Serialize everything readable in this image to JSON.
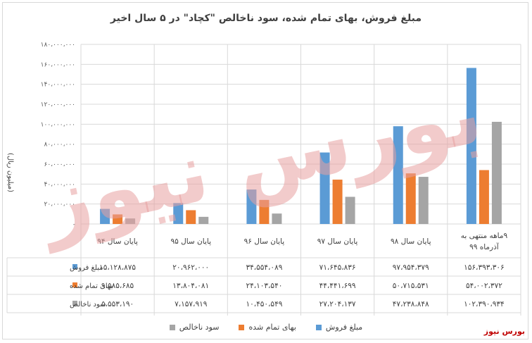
{
  "chart_data": {
    "type": "bar",
    "title": "مبلغ فروش، بهای تمام شده، سود ناخالص \"کچاد\" در ۵ سال اخیر",
    "ylabel": "(میلیون ریال)",
    "ylim": [
      0,
      180000000
    ],
    "yticks": [
      "-",
      "۲۰،۰۰۰،۰۰۰",
      "۴۰،۰۰۰،۰۰۰",
      "۶۰،۰۰۰،۰۰۰",
      "۸۰،۰۰۰،۰۰۰",
      "۱۰۰،۰۰۰،۰۰۰",
      "۱۲۰،۰۰۰،۰۰۰",
      "۱۴۰،۰۰۰،۰۰۰",
      "۱۶۰،۰۰۰،۰۰۰",
      "۱۸۰،۰۰۰،۰۰۰"
    ],
    "ytick_values": [
      0,
      20000000,
      40000000,
      60000000,
      80000000,
      100000000,
      120000000,
      140000000,
      160000000,
      180000000
    ],
    "categories": [
      "پایان سال ۹۴",
      "پایان سال ۹۵",
      "پایان سال ۹۶",
      "پایان سال ۹۷",
      "پایان سال ۹۸",
      "۹ماهه منتهی به آذرماه ۹۹"
    ],
    "grid": true,
    "legend_position": "bottom",
    "series": [
      {
        "name": "مبلغ فروش",
        "color": "#5b9bd5",
        "values": [
          15128875,
          20962000,
          34554089,
          71645836,
          97954379,
          156393306
        ],
        "labels": [
          "۱۵،۱۲۸،۸۷۵",
          "۲۰،۹۶۲،۰۰۰",
          "۳۴،۵۵۴،۰۸۹",
          "۷۱،۶۴۵،۸۳۶",
          "۹۷،۹۵۴،۳۷۹",
          "۱۵۶،۳۹۳،۳۰۶"
        ]
      },
      {
        "name": "بهای تمام شده",
        "color": "#ed7d31",
        "values": [
          9585685,
          13804081,
          24103540,
          44441699,
          50715531,
          54002372
        ],
        "labels": [
          "۹،۵۸۵،۶۸۵",
          "۱۳،۸۰۴،۰۸۱",
          "۲۴،۱۰۳،۵۴۰",
          "۴۴،۴۴۱،۶۹۹",
          "۵۰،۷۱۵،۵۳۱",
          "۵۴،۰۰۲،۳۷۲"
        ]
      },
      {
        "name": "سود ناخالص",
        "color": "#a5a5a5",
        "values": [
          5553190,
          7157919,
          10450549,
          27204137,
          47238848,
          102390934
        ],
        "labels": [
          "۵،۵۵۳،۱۹۰",
          "۷،۱۵۷،۹۱۹",
          "۱۰،۴۵۰،۵۴۹",
          "۲۷،۲۰۴،۱۳۷",
          "۴۷،۲۳۸،۸۴۸",
          "۱۰۲،۳۹۰،۹۳۴"
        ]
      }
    ]
  },
  "watermark": {
    "text": "بورس نیوز",
    "color": "#e8a0a0"
  },
  "source_tag": "بورس نیوز"
}
